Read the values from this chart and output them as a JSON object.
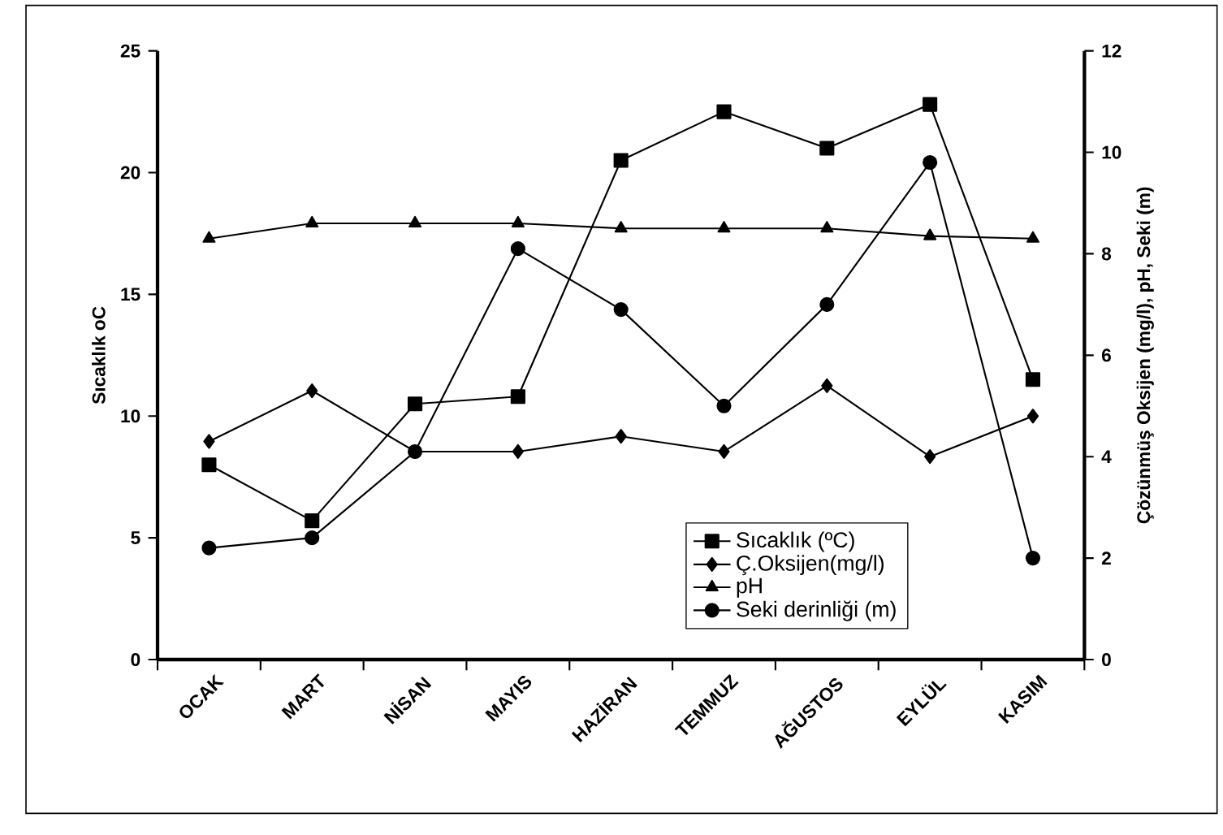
{
  "chart_data": {
    "type": "line",
    "categories": [
      "OCAK",
      "MART",
      "NİSAN",
      "MAYIS",
      "HAZİRAN",
      "TEMMUZ",
      "AĞUSTOS",
      "EYLÜL",
      "KASIM"
    ],
    "ylabel": "Sıcaklık oC",
    "y2label": "Çözünmüş Oksijen (mg/l), pH, Seki (m)",
    "ylim": [
      0,
      25
    ],
    "yticks": [
      0,
      5,
      10,
      15,
      20,
      25
    ],
    "y2lim": [
      0,
      12
    ],
    "y2ticks": [
      0,
      2,
      4,
      6,
      8,
      10,
      12
    ],
    "legend": "bottom right",
    "grid": false,
    "line_style": "solid",
    "series": [
      {
        "name": "Sıcaklık (ºC)",
        "color": "#000000",
        "marker": "square",
        "values": [
          8.0,
          5.7,
          10.5,
          10.8,
          20.5,
          22.5,
          21.0,
          22.8,
          11.5
        ]
      },
      {
        "name": "Ç.Oksijen(mg/l)",
        "color": "#000000",
        "marker": "diamond",
        "axis": "y2",
        "values": [
          4.3,
          5.3,
          4.1,
          4.1,
          4.4,
          4.1,
          5.4,
          4.0,
          4.8
        ]
      },
      {
        "name": "pH",
        "color": "#000000",
        "marker": "triangle",
        "axis": "y2",
        "values": [
          8.3,
          8.6,
          8.6,
          8.6,
          8.5,
          8.5,
          8.5,
          8.35,
          8.3
        ]
      },
      {
        "name": "Seki derinliği (m)",
        "color": "#000000",
        "marker": "circle",
        "axis": "y2",
        "values": [
          2.2,
          2.4,
          4.1,
          8.1,
          6.9,
          5.0,
          7.0,
          9.8,
          2.0
        ]
      }
    ]
  }
}
